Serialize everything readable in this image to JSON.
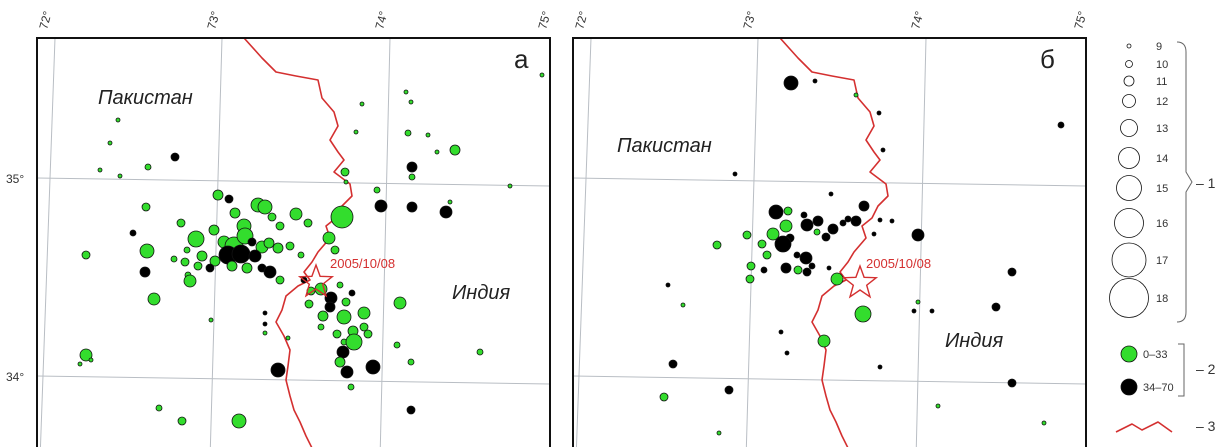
{
  "colors": {
    "shallow": "#33dd2d",
    "deep": "#000000",
    "border": "#d43030",
    "grid": "#b9bec4"
  },
  "map": {
    "longitude_labels": [
      "72°",
      "73°",
      "74°",
      "75°"
    ],
    "latitude_labels": [
      "35°",
      "34°"
    ],
    "countries": {
      "pakistan": "Пакистан",
      "india": "Индия"
    },
    "epicenter_label": "2005/10/08",
    "epicenter": {
      "lon": 73.6,
      "lat": 34.5
    },
    "panels": [
      {
        "letter": "а"
      },
      {
        "letter": "б"
      }
    ]
  },
  "legend": {
    "magnitudes": [
      "9",
      "10",
      "11",
      "12",
      "13",
      "14",
      "15",
      "16",
      "17",
      "18"
    ],
    "depth_classes": [
      "0–33",
      "34–70"
    ],
    "keys": [
      "– 1",
      "– 2",
      "– 3"
    ]
  }
}
